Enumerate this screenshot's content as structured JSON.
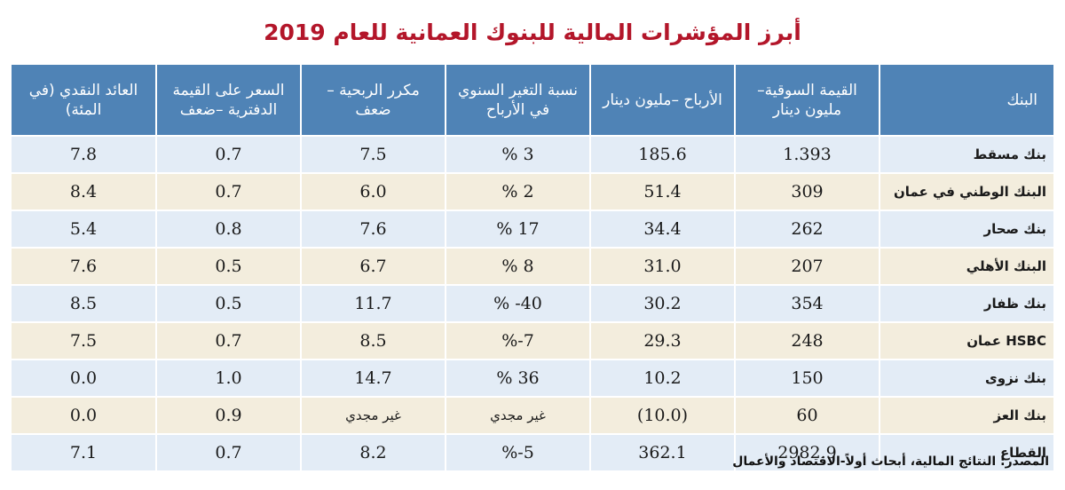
{
  "title": "أبرز المؤشرات المالية للبنوك العمانية للعام 2019",
  "table": {
    "headers": [
      "البنك",
      "القيمة السوقية– مليون دينار",
      "الأرباح –مليون دينار",
      "نسبة التغير السنوي في الأرباح",
      "مكرر الربحية –ضعف",
      "السعر على القيمة الدفترية –ضعف",
      "العائد النقدي (في المئة)"
    ],
    "rows": [
      [
        "بنك مسقط",
        "1.393",
        "185.6",
        "3 %",
        "7.5",
        "0.7",
        "7.8"
      ],
      [
        "البنك الوطني في عمان",
        "309",
        "51.4",
        "2 %",
        "6.0",
        "0.7",
        "8.4"
      ],
      [
        "بنك صحار",
        "262",
        "34.4",
        "17 %",
        "7.6",
        "0.8",
        "5.4"
      ],
      [
        "البنك الأهلي",
        "207",
        "31.0",
        "8 %",
        "6.7",
        "0.5",
        "7.6"
      ],
      [
        "بنك ظفار",
        "354",
        "30.2",
        "40- %",
        "11.7",
        "0.5",
        "8.5"
      ],
      [
        "HSBC عمان",
        "248",
        "29.3",
        "7-%",
        "8.5",
        "0.7",
        "7.5"
      ],
      [
        "بنك نزوى",
        "150",
        "10.2",
        "36 %",
        "14.7",
        "1.0",
        "0.0"
      ],
      [
        "بنك العز",
        "60",
        "(10.0)",
        "غير مجدي",
        "غير مجدي",
        "0.9",
        "0.0"
      ],
      [
        "القطاع",
        "2982.9",
        "362.1",
        "5-%",
        "8.2",
        "0.7",
        "7.1"
      ]
    ]
  },
  "source": "المصدر: النتائج المالية، أبحاث أولاً-الاقتصاد والأعمال",
  "colors": {
    "title": "#b3162a",
    "header_bg": "#4f83b6",
    "row_blue": "#e3ecf6",
    "row_beige": "#f3eddd"
  }
}
